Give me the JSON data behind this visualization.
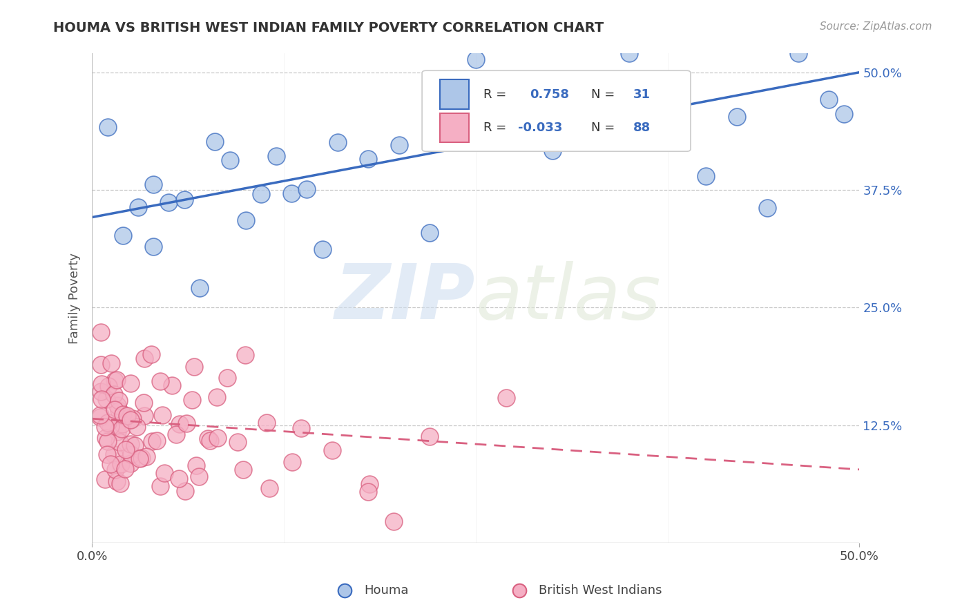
{
  "title": "HOUMA VS BRITISH WEST INDIAN FAMILY POVERTY CORRELATION CHART",
  "source": "Source: ZipAtlas.com",
  "ylabel": "Family Poverty",
  "houma_R": "0.758",
  "houma_N": "31",
  "bwi_R": "-0.033",
  "bwi_N": "88",
  "houma_color": "#adc6e8",
  "bwi_color": "#f5afc4",
  "houma_line_color": "#3a6bbf",
  "bwi_line_color": "#d96080",
  "background_color": "#ffffff",
  "watermark_text": "ZIPatlas",
  "xlim": [
    0.0,
    0.5
  ],
  "ylim": [
    0.0,
    0.52
  ],
  "yticks": [
    0.125,
    0.25,
    0.375,
    0.5
  ],
  "ytick_labels": [
    "12.5%",
    "25.0%",
    "37.5%",
    "50.0%"
  ],
  "xticks": [
    0.0,
    0.5
  ],
  "xtick_labels": [
    "0.0%",
    "50.0%"
  ],
  "houma_line_x0": 0.0,
  "houma_line_y0": 0.346,
  "houma_line_x1": 0.5,
  "houma_line_y1": 0.5,
  "bwi_line_x0": 0.0,
  "bwi_line_y0": 0.132,
  "bwi_line_x1": 0.5,
  "bwi_line_y1": 0.078
}
